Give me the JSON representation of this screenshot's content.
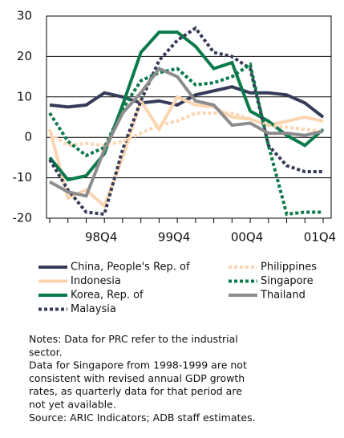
{
  "chart_data": {
    "type": "line",
    "categories": [
      null,
      null,
      null,
      "98Q4",
      null,
      null,
      null,
      "99Q4",
      null,
      null,
      null,
      "00Q4",
      null,
      null,
      null,
      "01Q4"
    ],
    "ylim": [
      -20,
      30
    ],
    "yticks": [
      -20,
      -10,
      0,
      10,
      20,
      30
    ],
    "grid": true,
    "series": [
      {
        "name": "China, People's Rep. of",
        "color": "#363b59",
        "dash": "solid",
        "values": [
          8,
          7.5,
          8,
          11,
          10,
          8.5,
          9,
          8,
          10.5,
          11.5,
          12.5,
          11,
          11,
          10.5,
          8.5,
          5
        ]
      },
      {
        "name": "Indonesia",
        "color": "#fcd5b0",
        "dash": "solid",
        "values": [
          2,
          -15,
          -13,
          -17,
          -5,
          9,
          2,
          10,
          8,
          7.5,
          5,
          4.5,
          3,
          4,
          5,
          4
        ]
      },
      {
        "name": "Korea, Rep. of",
        "color": "#0b7a4b",
        "dash": "solid",
        "values": [
          -5,
          -10.5,
          -9.5,
          -4,
          8,
          21,
          26,
          26,
          22.5,
          17,
          18.5,
          6.5,
          4,
          0.5,
          -2,
          2
        ]
      },
      {
        "name": "Malaysia",
        "color": "#363b59",
        "dash": "dotted",
        "values": [
          -5.5,
          -13,
          -18.5,
          -19,
          -3,
          9,
          19,
          24,
          27,
          21,
          20,
          17,
          -2,
          -7,
          -8.5,
          -8.5
        ]
      },
      {
        "name": "Philippines",
        "color": "#fcd5b0",
        "dash": "dotted",
        "values": [
          1,
          -2,
          -1.5,
          -2,
          -1,
          1,
          3,
          4,
          6,
          6,
          6,
          4.5,
          3,
          2.5,
          2,
          1.5
        ]
      },
      {
        "name": "Singapore",
        "color": "#0b7a4b",
        "dash": "dotted",
        "values": [
          6,
          -1,
          -4.5,
          -2.5,
          7,
          14,
          16,
          17,
          13,
          13.5,
          15,
          18,
          -2,
          -19,
          -18.5,
          -18.5
        ]
      },
      {
        "name": "Thailand",
        "color": "#8c8c8c",
        "dash": "solid",
        "values": [
          -11,
          -13.5,
          -14.5,
          -3,
          6,
          11,
          17,
          15,
          9,
          8,
          3,
          3.5,
          1,
          1,
          0.5,
          1.5
        ]
      }
    ],
    "notes": [
      "Notes: Data for PRC refer to the industrial",
      "sector.",
      "Data for Singapore from 1998-1999 are not",
      "consistent with revised annual GDP growth",
      "rates, as  quarterly data for that period are",
      "not yet available.",
      "Source: ARIC Indicators; ADB staff estimates."
    ]
  }
}
